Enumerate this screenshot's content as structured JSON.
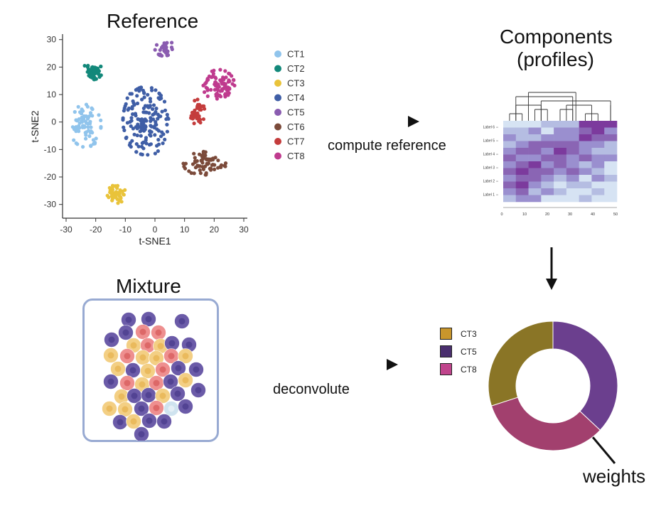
{
  "titles": {
    "reference": "Reference",
    "components_line1": "Components",
    "components_line2": "(profiles)",
    "mixture": "Mixture"
  },
  "arrows": {
    "compute": "compute reference",
    "deconvolute": "deconvolute"
  },
  "weights_label": "weights",
  "tsne": {
    "xlabel": "t-SNE1",
    "ylabel": "t-SNE2",
    "xticks": [
      "-30",
      "-20",
      "-10",
      "0",
      "10",
      "20",
      "30"
    ],
    "yticks": [
      "30",
      "20",
      "10",
      "0",
      "-10",
      "-20",
      "-30"
    ],
    "xlim": [
      -30,
      30
    ],
    "ylim": [
      -35,
      32
    ],
    "legend": [
      {
        "name": "CT1",
        "color": "#90c4ec"
      },
      {
        "name": "CT2",
        "color": "#12887a"
      },
      {
        "name": "CT3",
        "color": "#e9c33a"
      },
      {
        "name": "CT4",
        "color": "#3f5ea6"
      },
      {
        "name": "CT5",
        "color": "#8a5cb0"
      },
      {
        "name": "CT6",
        "color": "#7b4a3a"
      },
      {
        "name": "CT7",
        "color": "#c43c3c"
      },
      {
        "name": "CT8",
        "color": "#bf3b8e"
      }
    ]
  },
  "heatmap": {
    "row_labels": [
      "Label 6",
      "Label 5",
      "Label 4",
      "Label 3",
      "Label 2",
      "Label 1"
    ],
    "x_ticks": [
      "0",
      "10",
      "20",
      "30",
      "40",
      "50"
    ]
  },
  "donut": {
    "legend": [
      {
        "name": "CT3",
        "color": "#c8962c"
      },
      {
        "name": "CT5",
        "color": "#4a2f6e"
      },
      {
        "name": "CT8",
        "color": "#c0448c"
      }
    ],
    "slices": [
      {
        "name": "CT5",
        "value": 0.37,
        "color": "#6b3f8e"
      },
      {
        "name": "CT8",
        "value": 0.33,
        "color": "#a2406e"
      },
      {
        "name": "CT3",
        "value": 0.3,
        "color": "#8a7526"
      }
    ]
  },
  "mixture_colors": {
    "purple": "#6b5ba8",
    "purple_core": "#4e3f8f",
    "pink": "#ee8f8f",
    "pink_core": "#d96262",
    "yellow": "#f3cf84",
    "yellow_core": "#e8b656",
    "lightblue": "#cfe3ef"
  }
}
